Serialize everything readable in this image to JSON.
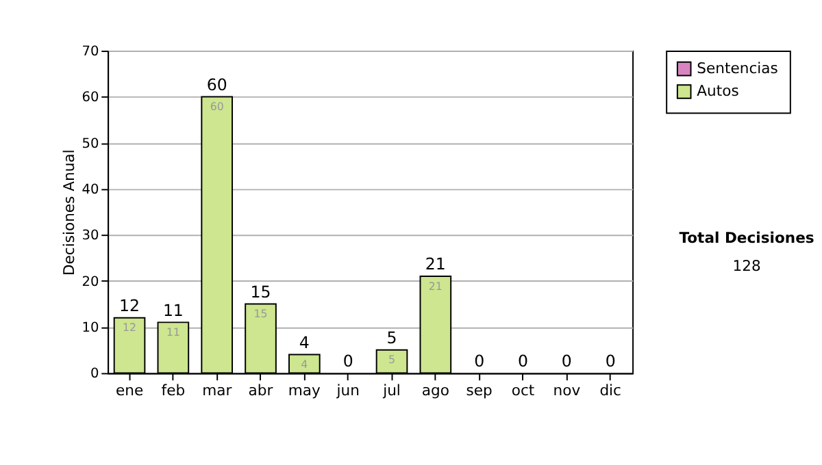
{
  "chart_data": {
    "type": "bar",
    "stacked": true,
    "ylabel": "Decisiones Anual",
    "categories": [
      "ene",
      "feb",
      "mar",
      "abr",
      "may",
      "jun",
      "jul",
      "ago",
      "sep",
      "oct",
      "nov",
      "dic"
    ],
    "series": [
      {
        "name": "Sentencias",
        "color": "#d884c0",
        "values": [
          0,
          0,
          0,
          0,
          0,
          0,
          0,
          0,
          0,
          0,
          0,
          0
        ]
      },
      {
        "name": "Autos",
        "color": "#cde68f",
        "values": [
          12,
          11,
          60,
          15,
          4,
          0,
          5,
          21,
          0,
          0,
          0,
          0
        ],
        "value_labels": [
          "12",
          "11",
          "60",
          "15",
          "4",
          null,
          "5",
          "21",
          null,
          null,
          null,
          null
        ]
      }
    ],
    "totals": [
      "12",
      "11",
      "60",
      "15",
      "4",
      "0",
      "5",
      "21",
      "0",
      "0",
      "0",
      "0"
    ],
    "ylim": [
      0,
      70
    ],
    "yticks": [
      0,
      10,
      20,
      30,
      40,
      50,
      60,
      70
    ],
    "grid": "y",
    "legend": "right",
    "annotations": [
      "Total Decisiones",
      "128"
    ]
  }
}
